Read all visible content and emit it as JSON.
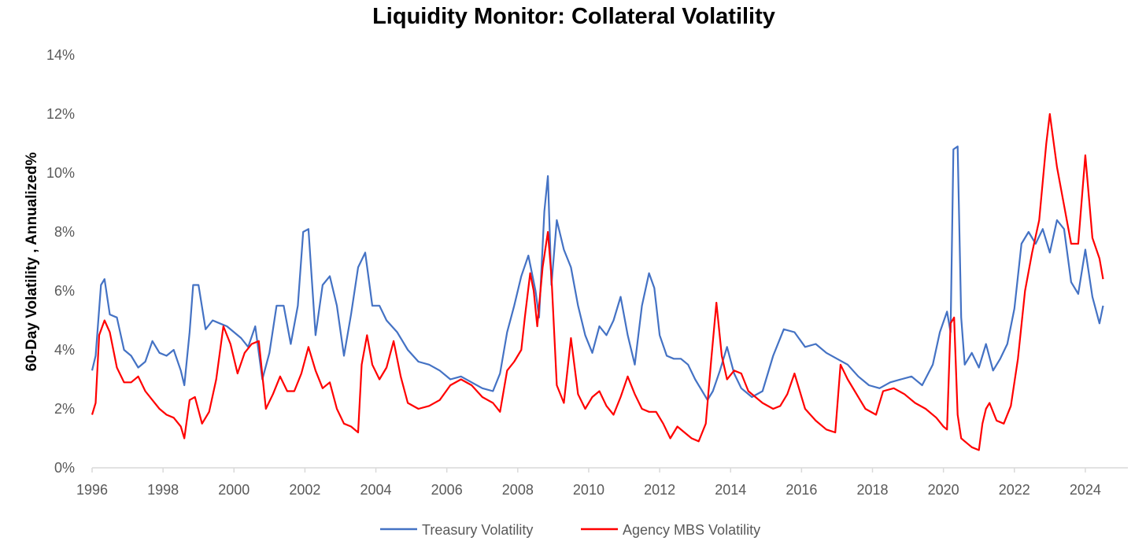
{
  "chart_data": {
    "type": "line",
    "title": "Liquidity Monitor: Collateral Volatility",
    "xlabel": "",
    "ylabel": "60-Day Volatility , Annualized%",
    "xlim": [
      1996,
      2025.2
    ],
    "ylim": [
      0,
      14
    ],
    "x_ticks": [
      1996,
      1998,
      2000,
      2002,
      2004,
      2006,
      2008,
      2010,
      2012,
      2014,
      2016,
      2018,
      2020,
      2022,
      2024
    ],
    "x_tick_labels": [
      "1996",
      "1998",
      "2000",
      "2002",
      "2004",
      "2006",
      "2008",
      "2010",
      "2012",
      "2014",
      "2016",
      "2018",
      "2020",
      "2022",
      "2024"
    ],
    "y_ticks": [
      0,
      2,
      4,
      6,
      8,
      10,
      12,
      14
    ],
    "y_tick_labels": [
      "0%",
      "2%",
      "4%",
      "6%",
      "8%",
      "10%",
      "12%",
      "14%"
    ],
    "grid": false,
    "legend_position": "bottom-center",
    "series": [
      {
        "name": "Treasury Volatility",
        "color": "#4472C4",
        "x": [
          1996.0,
          1996.1,
          1996.25,
          1996.35,
          1996.5,
          1996.7,
          1996.9,
          1997.1,
          1997.3,
          1997.5,
          1997.7,
          1997.9,
          1998.1,
          1998.3,
          1998.5,
          1998.6,
          1998.75,
          1998.85,
          1999.0,
          1999.2,
          1999.4,
          1999.6,
          1999.8,
          2000.0,
          2000.2,
          2000.4,
          2000.6,
          2000.8,
          2001.0,
          2001.2,
          2001.4,
          2001.6,
          2001.8,
          2001.95,
          2002.1,
          2002.3,
          2002.5,
          2002.7,
          2002.9,
          2003.1,
          2003.3,
          2003.5,
          2003.7,
          2003.9,
          2004.1,
          2004.3,
          2004.6,
          2004.9,
          2005.2,
          2005.5,
          2005.8,
          2006.1,
          2006.4,
          2006.7,
          2007.0,
          2007.3,
          2007.5,
          2007.7,
          2007.9,
          2008.1,
          2008.3,
          2008.5,
          2008.6,
          2008.75,
          2008.85,
          2008.95,
          2009.1,
          2009.3,
          2009.5,
          2009.7,
          2009.9,
          2010.1,
          2010.3,
          2010.5,
          2010.7,
          2010.9,
          2011.1,
          2011.3,
          2011.5,
          2011.7,
          2011.85,
          2012.0,
          2012.2,
          2012.4,
          2012.6,
          2012.8,
          2013.0,
          2013.2,
          2013.35,
          2013.5,
          2013.7,
          2013.9,
          2014.1,
          2014.3,
          2014.6,
          2014.9,
          2015.2,
          2015.5,
          2015.8,
          2016.1,
          2016.4,
          2016.7,
          2017.0,
          2017.3,
          2017.6,
          2017.9,
          2018.2,
          2018.5,
          2018.8,
          2019.1,
          2019.4,
          2019.7,
          2019.9,
          2020.1,
          2020.2,
          2020.28,
          2020.4,
          2020.5,
          2020.6,
          2020.8,
          2021.0,
          2021.2,
          2021.4,
          2021.6,
          2021.8,
          2022.0,
          2022.2,
          2022.4,
          2022.6,
          2022.8,
          2023.0,
          2023.2,
          2023.4,
          2023.6,
          2023.8,
          2024.0,
          2024.2,
          2024.4,
          2024.5
        ],
        "values": [
          3.3,
          3.8,
          6.2,
          6.4,
          5.2,
          5.1,
          4.0,
          3.8,
          3.4,
          3.6,
          4.3,
          3.9,
          3.8,
          4.0,
          3.3,
          2.8,
          4.6,
          6.2,
          6.2,
          4.7,
          5.0,
          4.9,
          4.8,
          4.6,
          4.4,
          4.1,
          4.8,
          3.0,
          3.9,
          5.5,
          5.5,
          4.2,
          5.5,
          8.0,
          8.1,
          4.5,
          6.2,
          6.5,
          5.5,
          3.8,
          5.2,
          6.8,
          7.3,
          5.5,
          5.5,
          5.0,
          4.6,
          4.0,
          3.6,
          3.5,
          3.3,
          3.0,
          3.1,
          2.9,
          2.7,
          2.6,
          3.2,
          4.6,
          5.5,
          6.5,
          7.2,
          6.0,
          5.1,
          8.7,
          9.9,
          6.2,
          8.4,
          7.4,
          6.8,
          5.5,
          4.5,
          3.9,
          4.8,
          4.5,
          5.0,
          5.8,
          4.5,
          3.5,
          5.5,
          6.6,
          6.1,
          4.5,
          3.8,
          3.7,
          3.7,
          3.5,
          3.0,
          2.6,
          2.3,
          2.6,
          3.3,
          4.1,
          3.2,
          2.7,
          2.4,
          2.6,
          3.8,
          4.7,
          4.6,
          4.1,
          4.2,
          3.9,
          3.7,
          3.5,
          3.1,
          2.8,
          2.7,
          2.9,
          3.0,
          3.1,
          2.8,
          3.5,
          4.6,
          5.3,
          4.6,
          10.8,
          10.9,
          5.1,
          3.5,
          3.9,
          3.4,
          4.2,
          3.3,
          3.7,
          4.2,
          5.4,
          7.6,
          8.0,
          7.6,
          8.1,
          7.3,
          8.4,
          8.1,
          6.3,
          5.9,
          7.4,
          5.8,
          4.9,
          5.5
        ]
      },
      {
        "name": "Agency MBS Volatility",
        "color": "#FF0000",
        "x": [
          1996.0,
          1996.1,
          1996.2,
          1996.35,
          1996.5,
          1996.7,
          1996.9,
          1997.1,
          1997.3,
          1997.5,
          1997.7,
          1997.9,
          1998.1,
          1998.3,
          1998.5,
          1998.6,
          1998.75,
          1998.9,
          1999.1,
          1999.3,
          1999.5,
          1999.7,
          1999.9,
          2000.1,
          2000.3,
          2000.5,
          2000.7,
          2000.9,
          2001.1,
          2001.3,
          2001.5,
          2001.7,
          2001.9,
          2002.1,
          2002.3,
          2002.5,
          2002.7,
          2002.9,
          2003.1,
          2003.3,
          2003.5,
          2003.6,
          2003.75,
          2003.9,
          2004.1,
          2004.3,
          2004.5,
          2004.7,
          2004.9,
          2005.2,
          2005.5,
          2005.8,
          2006.1,
          2006.4,
          2006.7,
          2007.0,
          2007.3,
          2007.5,
          2007.7,
          2007.9,
          2008.1,
          2008.2,
          2008.35,
          2008.45,
          2008.55,
          2008.7,
          2008.85,
          2008.95,
          2009.1,
          2009.3,
          2009.5,
          2009.7,
          2009.9,
          2010.1,
          2010.3,
          2010.5,
          2010.7,
          2010.9,
          2011.1,
          2011.3,
          2011.5,
          2011.7,
          2011.9,
          2012.1,
          2012.3,
          2012.5,
          2012.7,
          2012.9,
          2013.1,
          2013.3,
          2013.45,
          2013.6,
          2013.75,
          2013.9,
          2014.1,
          2014.3,
          2014.5,
          2014.7,
          2014.9,
          2015.2,
          2015.4,
          2015.6,
          2015.8,
          2016.1,
          2016.4,
          2016.7,
          2016.95,
          2017.1,
          2017.3,
          2017.5,
          2017.8,
          2018.1,
          2018.3,
          2018.6,
          2018.9,
          2019.2,
          2019.5,
          2019.8,
          2020.0,
          2020.1,
          2020.2,
          2020.3,
          2020.4,
          2020.5,
          2020.6,
          2020.8,
          2021.0,
          2021.1,
          2021.2,
          2021.3,
          2021.5,
          2021.7,
          2021.9,
          2022.1,
          2022.3,
          2022.5,
          2022.7,
          2022.9,
          2023.0,
          2023.2,
          2023.4,
          2023.6,
          2023.8,
          2024.0,
          2024.2,
          2024.4,
          2024.5
        ],
        "values": [
          1.8,
          2.2,
          4.5,
          5.0,
          4.6,
          3.4,
          2.9,
          2.9,
          3.1,
          2.6,
          2.3,
          2.0,
          1.8,
          1.7,
          1.4,
          1.0,
          2.3,
          2.4,
          1.5,
          1.9,
          3.0,
          4.8,
          4.2,
          3.2,
          3.9,
          4.2,
          4.3,
          2.0,
          2.5,
          3.1,
          2.6,
          2.6,
          3.2,
          4.1,
          3.3,
          2.7,
          2.9,
          2.0,
          1.5,
          1.4,
          1.2,
          3.5,
          4.5,
          3.5,
          3.0,
          3.4,
          4.3,
          3.1,
          2.2,
          2.0,
          2.1,
          2.3,
          2.8,
          3.0,
          2.8,
          2.4,
          2.2,
          1.9,
          3.3,
          3.6,
          4.0,
          5.1,
          6.6,
          6.0,
          4.8,
          6.8,
          8.0,
          6.5,
          2.8,
          2.2,
          4.4,
          2.5,
          2.0,
          2.4,
          2.6,
          2.1,
          1.8,
          2.4,
          3.1,
          2.5,
          2.0,
          1.9,
          1.9,
          1.5,
          1.0,
          1.4,
          1.2,
          1.0,
          0.9,
          1.5,
          3.6,
          5.6,
          3.8,
          3.0,
          3.3,
          3.2,
          2.6,
          2.4,
          2.2,
          2.0,
          2.1,
          2.5,
          3.2,
          2.0,
          1.6,
          1.3,
          1.2,
          3.5,
          3.0,
          2.6,
          2.0,
          1.8,
          2.6,
          2.7,
          2.5,
          2.2,
          2.0,
          1.7,
          1.4,
          1.3,
          4.9,
          5.1,
          1.8,
          1.0,
          0.9,
          0.7,
          0.6,
          1.5,
          2.0,
          2.2,
          1.6,
          1.5,
          2.1,
          3.7,
          6.0,
          7.3,
          8.4,
          11.0,
          12.0,
          10.2,
          8.9,
          7.6,
          7.6,
          10.6,
          7.8,
          7.1,
          6.4
        ]
      }
    ]
  }
}
